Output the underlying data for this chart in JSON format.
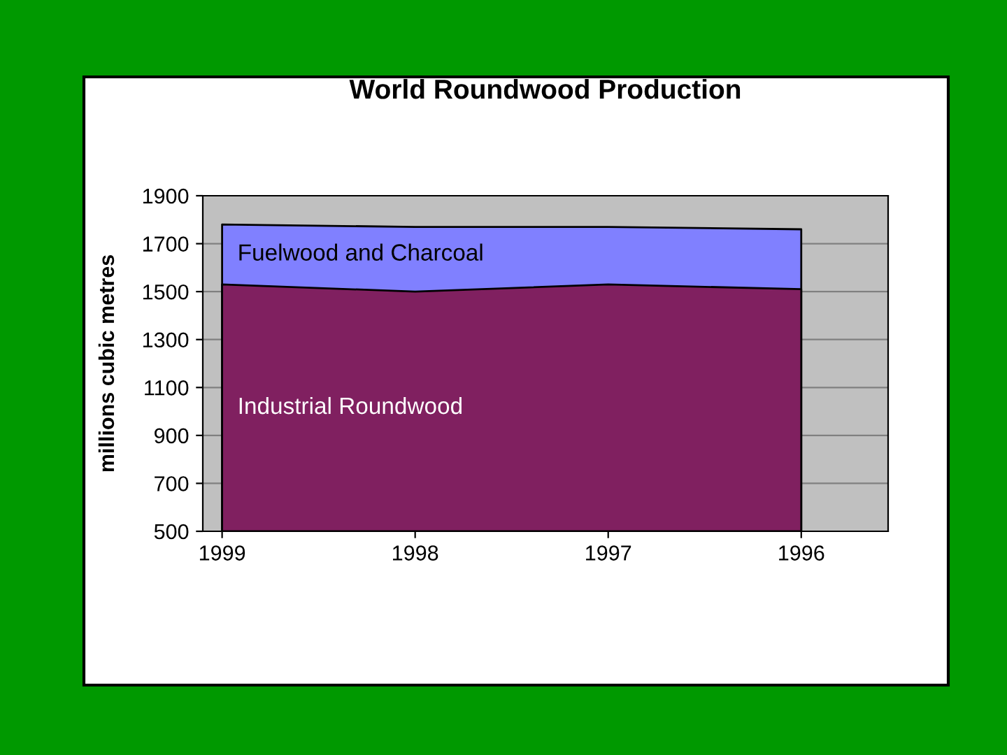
{
  "chart_data": {
    "type": "area",
    "title": "World Roundwood Production",
    "ylabel": "millions cubic metres",
    "categories": [
      "1999",
      "1998",
      "1997",
      "1996"
    ],
    "series": [
      {
        "name": "Fuelwood and Charcoal",
        "color": "#8080ff",
        "values": [
          1780,
          1770,
          1770,
          1760
        ]
      },
      {
        "name": "Industrial Roundwood",
        "color": "#802060",
        "values": [
          1530,
          1500,
          1530,
          1510
        ]
      }
    ],
    "ylim": [
      500,
      1900
    ],
    "yticks": [
      500,
      700,
      900,
      1100,
      1300,
      1500,
      1700,
      1900
    ],
    "grid": "y"
  }
}
